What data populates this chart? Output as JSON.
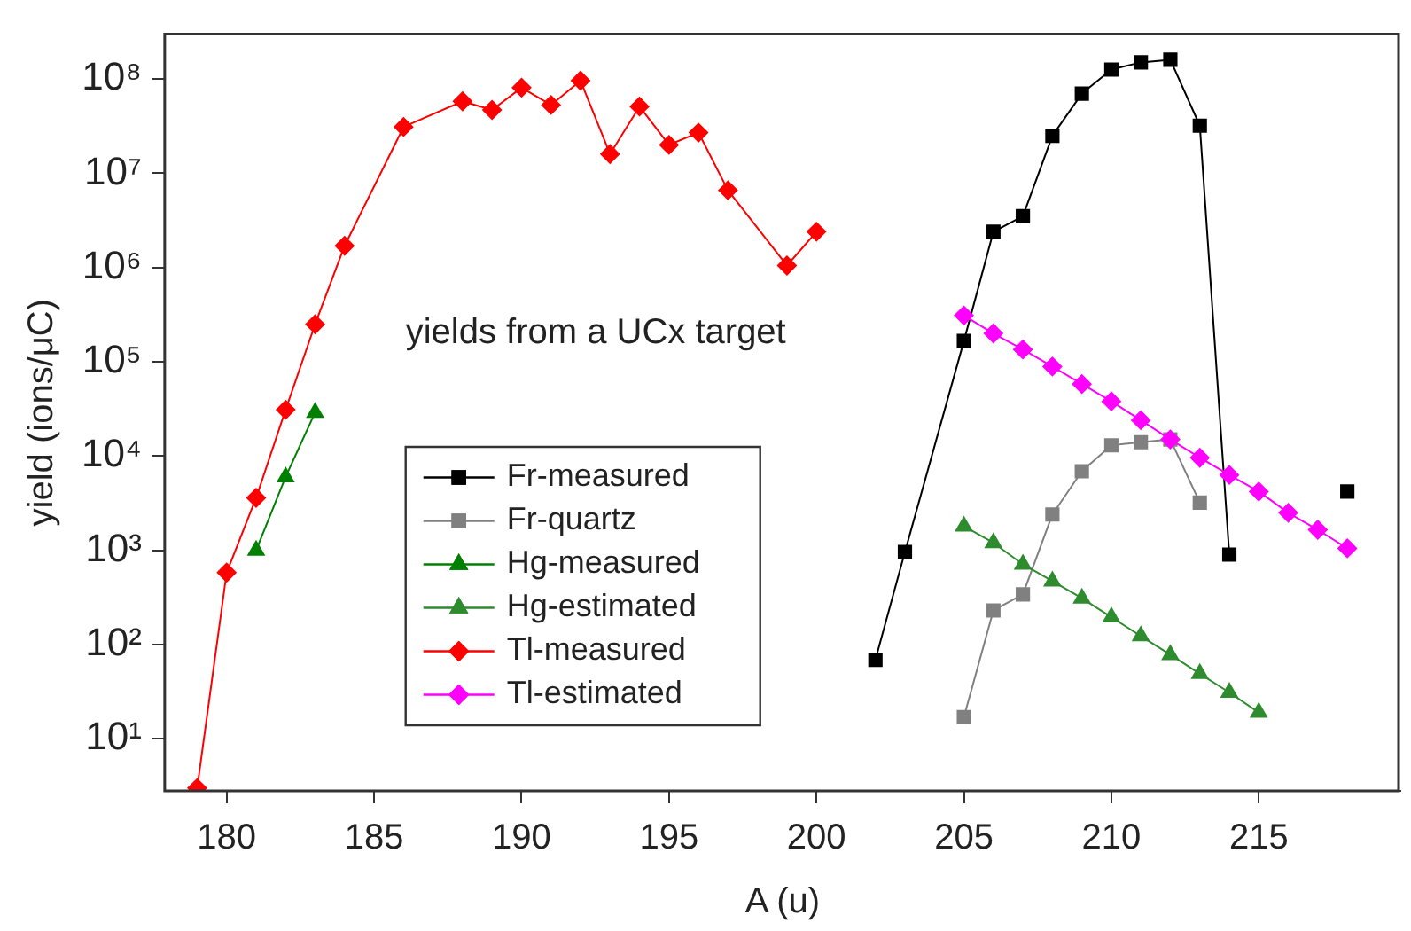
{
  "chart_data": {
    "type": "line",
    "xlabel": "A (u)",
    "ylabel": "yield (ions/μC)",
    "annotations": [
      "yields from a UCx target"
    ],
    "xlim": [
      177.9,
      219.8
    ],
    "xticks": [
      180,
      185,
      190,
      195,
      200,
      205,
      210,
      215
    ],
    "ylim": [
      2.8,
      300000000
    ],
    "yticks": [
      {
        "value": 10,
        "label": "10¹"
      },
      {
        "value": 100,
        "label": "10²"
      },
      {
        "value": 1000,
        "label": "10³"
      },
      {
        "value": 10000,
        "label": "10⁴"
      },
      {
        "value": 100000,
        "label": "10⁵"
      },
      {
        "value": 1000000,
        "label": "10⁶"
      },
      {
        "value": 10000000,
        "label": "10⁷"
      },
      {
        "value": 100000000,
        "label": "10⁸"
      }
    ],
    "log": "y",
    "grid": false,
    "legend": "bottom left",
    "series": [
      {
        "name": "Fr-measured",
        "color": "#000000",
        "marker": "square",
        "x": [
          202,
          203,
          205,
          206,
          207,
          208,
          209,
          210,
          211,
          212,
          213,
          214,
          215,
          216,
          217,
          218
        ],
        "values": [
          69,
          960,
          166000,
          2400000,
          3500000,
          25000000,
          70000000,
          126000000,
          150000000,
          160000000,
          32000000,
          900,
          null,
          null,
          null,
          4200
        ]
      },
      {
        "name": "Fr-quartz",
        "color": "#808080",
        "marker": "square",
        "x": [
          205,
          206,
          207,
          208,
          209,
          210,
          211,
          212,
          213
        ],
        "values": [
          17,
          230,
          340,
          2400,
          6900,
          13000,
          14000,
          15000,
          3200
        ]
      },
      {
        "name": "Hg-measured",
        "color": "#008000",
        "marker": "triangle",
        "x": [
          181,
          182,
          183
        ],
        "values": [
          1000,
          6000,
          29000
        ]
      },
      {
        "name": "Hg-estimated",
        "color": "#2e8b2e",
        "marker": "triangle",
        "x": [
          205,
          206,
          207,
          208,
          209,
          210,
          211,
          212,
          213,
          214,
          215
        ],
        "values": [
          1800,
          1200,
          710,
          470,
          310,
          195,
          123,
          78,
          49,
          31,
          19
        ]
      },
      {
        "name": "Tl-measured",
        "color": "#ff0000",
        "marker": "diamond",
        "x": [
          179,
          180,
          181,
          182,
          183,
          184,
          186,
          188,
          189,
          190,
          191,
          192,
          193,
          194,
          195,
          196,
          197,
          199,
          200
        ],
        "values": [
          3,
          580,
          3600,
          31000,
          250000,
          1700000,
          31000000,
          58000000,
          47000000,
          81000000,
          53000000,
          96000000,
          16000000,
          51000000,
          20000000,
          27000000,
          6600000,
          1050000,
          2400000
        ]
      },
      {
        "name": "Tl-estimated",
        "color": "#ff00ff",
        "marker": "diamond",
        "x": [
          205,
          206,
          207,
          208,
          209,
          210,
          211,
          212,
          213,
          214,
          215,
          216,
          217,
          218
        ],
        "values": [
          310000,
          200000,
          135000,
          89000,
          58000,
          38000,
          24000,
          15000,
          9600,
          6300,
          4200,
          2500,
          1650,
          1050
        ]
      }
    ]
  }
}
